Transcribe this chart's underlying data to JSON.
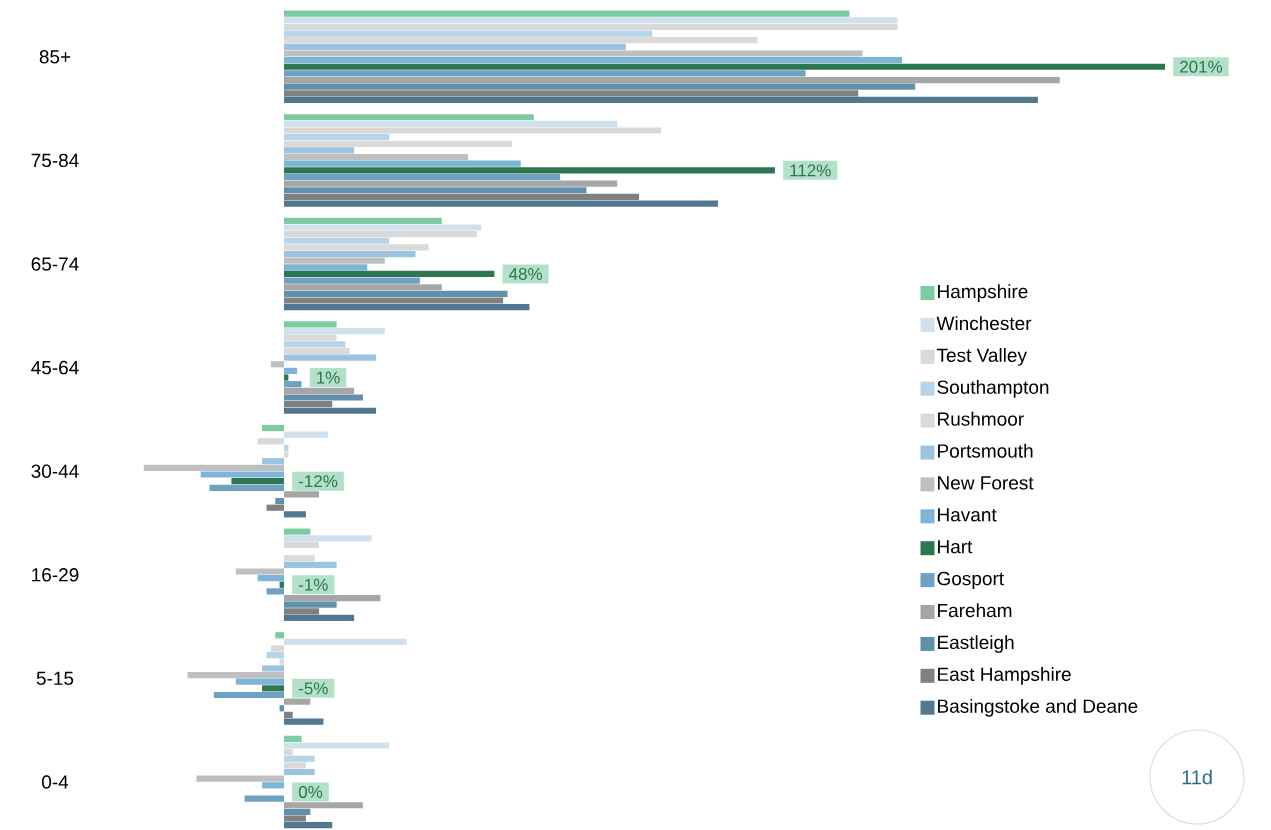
{
  "chart_data": {
    "type": "bar",
    "orientation": "horizontal",
    "legend": "right",
    "categories": [
      "85+",
      "75-84",
      "65-74",
      "45-64",
      "30-44",
      "16-29",
      "5-15",
      "0-4"
    ],
    "series": [
      {
        "name": "Hampshire",
        "color": "#7fcba1",
        "values": [
          129,
          57,
          36,
          12,
          -5,
          6,
          -2,
          4
        ]
      },
      {
        "name": "Winchester",
        "color": "#cfe1ef",
        "values": [
          140,
          76,
          45,
          23,
          10,
          20,
          28,
          24
        ]
      },
      {
        "name": "Test Valley",
        "color": "#d9d9d9",
        "values": [
          140,
          86,
          44,
          12,
          -6,
          8,
          -3,
          2
        ]
      },
      {
        "name": "Southampton",
        "color": "#b8d4e8",
        "values": [
          84,
          24,
          24,
          14,
          1,
          0,
          -4,
          7
        ]
      },
      {
        "name": "Rushmoor",
        "color": "#dadada",
        "values": [
          108,
          52,
          33,
          15,
          1,
          7,
          -1,
          5
        ]
      },
      {
        "name": "Portsmouth",
        "color": "#9cc3e0",
        "values": [
          78,
          16,
          30,
          21,
          -5,
          12,
          -5,
          7
        ]
      },
      {
        "name": "New Forest",
        "color": "#bfbfbf",
        "values": [
          132,
          42,
          23,
          -3,
          -32,
          -11,
          -22,
          -20
        ]
      },
      {
        "name": "Havant",
        "color": "#7eb4d6",
        "values": [
          141,
          54,
          19,
          3,
          -19,
          -6,
          -11,
          -5
        ]
      },
      {
        "name": "Hart",
        "color": "#2e7552",
        "values": [
          201,
          112,
          48,
          1,
          -12,
          -1,
          -5,
          0
        ],
        "value_labels": [
          "201%",
          "112%",
          "48%",
          "1%",
          "-12%",
          "-1%",
          "-5%",
          "0%"
        ]
      },
      {
        "name": "Gosport",
        "color": "#6fa1c3",
        "values": [
          119,
          63,
          31,
          4,
          -17,
          -4,
          -16,
          -9
        ]
      },
      {
        "name": "Fareham",
        "color": "#a6a6a6",
        "values": [
          177,
          76,
          36,
          16,
          8,
          22,
          6,
          18
        ]
      },
      {
        "name": "Eastleigh",
        "color": "#6190ad",
        "values": [
          144,
          69,
          51,
          18,
          -2,
          12,
          -1,
          6
        ]
      },
      {
        "name": "East Hampshire",
        "color": "#808080",
        "values": [
          131,
          81,
          50,
          11,
          -4,
          8,
          2,
          5
        ]
      },
      {
        "name": "Basingstoke and Deane",
        "color": "#527891",
        "values": [
          172,
          99,
          56,
          21,
          5,
          16,
          9,
          11
        ]
      }
    ],
    "annotations": [
      "11d"
    ]
  }
}
